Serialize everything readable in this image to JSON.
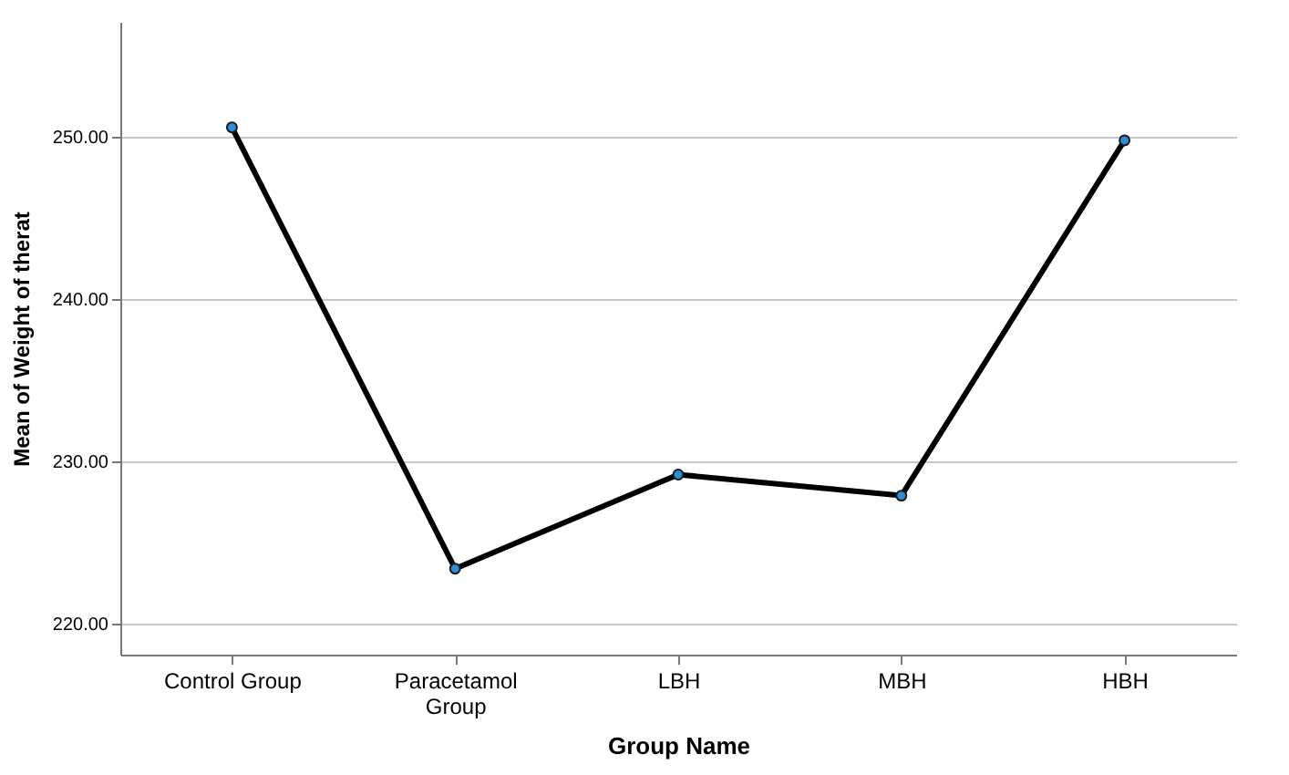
{
  "chart_data": {
    "type": "line",
    "xlabel": "Group Name",
    "ylabel": "Mean of Weight of therat",
    "categories": [
      "Control Group",
      "Paracetamol Group",
      "LBH",
      "MBH",
      "HBH"
    ],
    "series": [
      {
        "color": "#000000",
        "values": [
          250.6,
          223.4,
          229.2,
          227.9,
          249.8
        ]
      }
    ],
    "ylim": [
      218.1,
      257.1
    ],
    "yticks": [
      {
        "value": 220,
        "label": "220.00"
      },
      {
        "value": 230,
        "label": "230.00"
      },
      {
        "value": 240,
        "label": "240.00"
      },
      {
        "value": 250,
        "label": "250.00"
      }
    ],
    "grid": "y",
    "marker": "circle",
    "line_style": "solid"
  }
}
